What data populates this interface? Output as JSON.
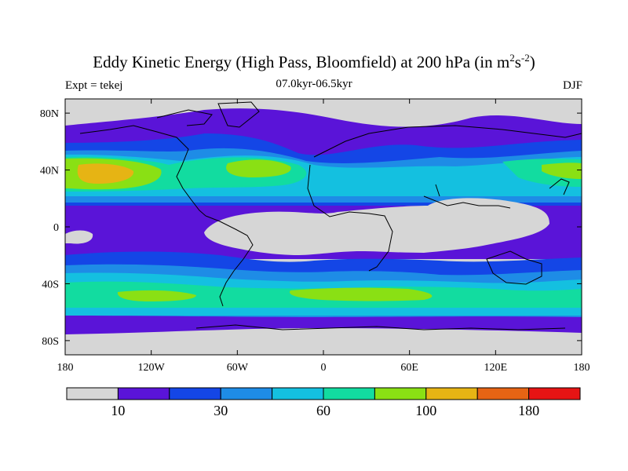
{
  "title_main": "Eddy Kinetic Energy (High Pass, Bloomfield) at 200 hPa (in m",
  "title_sup1": "2",
  "title_mid": "s",
  "title_sup2": "-2",
  "title_end": ")",
  "subtitle": "07.0kyr-06.5kyr",
  "left_label": "Expt = tekej",
  "right_label": "DJF",
  "lat_ticks": [
    {
      "label": "80N",
      "lat": 80
    },
    {
      "label": "40N",
      "lat": 40
    },
    {
      "label": "0",
      "lat": 0
    },
    {
      "label": "40S",
      "lat": -40
    },
    {
      "label": "80S",
      "lat": -80
    }
  ],
  "lon_ticks": [
    {
      "label": "180",
      "lon": -180
    },
    {
      "label": "120W",
      "lon": -120
    },
    {
      "label": "60W",
      "lon": -60
    },
    {
      "label": "0",
      "lon": 0
    },
    {
      "label": "60E",
      "lon": 60
    },
    {
      "label": "120E",
      "lon": 120
    },
    {
      "label": "180",
      "lon": 180
    }
  ],
  "colors": {
    "below": "#d6d6d6",
    "c1": "#5a14d8",
    "c2": "#1446e6",
    "c3": "#1e8ce6",
    "c4": "#14c0e0",
    "c5": "#12dca0",
    "c6": "#8ae014",
    "c7": "#e6b414",
    "c8": "#e66414",
    "c9": "#e61414"
  },
  "colorbar": {
    "colors": [
      "#d6d6d6",
      "#5a14d8",
      "#1446e6",
      "#1e8ce6",
      "#14c0e0",
      "#12dca0",
      "#8ae014",
      "#e6b414",
      "#e66414",
      "#e61414"
    ],
    "labels": [
      {
        "text": "10",
        "index": 1
      },
      {
        "text": "30",
        "index": 3
      },
      {
        "text": "60",
        "index": 5
      },
      {
        "text": "100",
        "index": 7
      },
      {
        "text": "180",
        "index": 9
      }
    ]
  }
}
